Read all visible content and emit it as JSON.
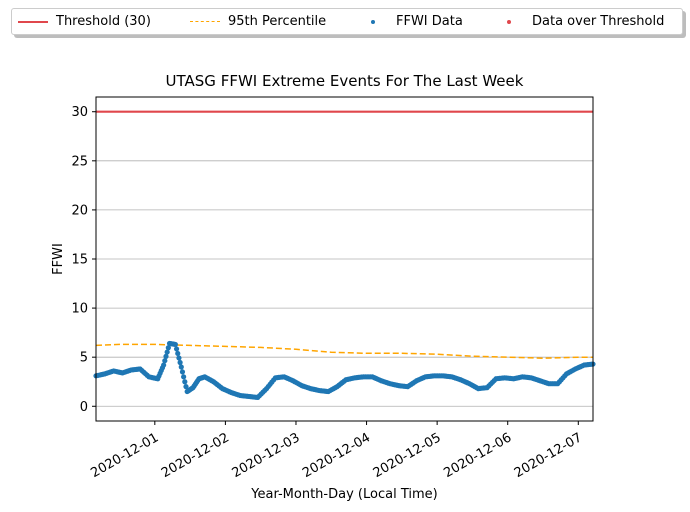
{
  "chart_data": {
    "type": "line",
    "title": "UTASG FFWI Extreme Events For The Last Week",
    "xlabel": "Year-Month-Day (Local Time)",
    "ylabel": "FFWI",
    "ylim": [
      -1.5,
      31.5
    ],
    "xlim": [
      "2020-11-30T04:00",
      "2020-12-07T05:00"
    ],
    "yticks": [
      0,
      5,
      10,
      15,
      20,
      25,
      30
    ],
    "ytick_labels": [
      "0",
      "5",
      "10",
      "15",
      "20",
      "25",
      "30"
    ],
    "xticks": [
      "2020-12-01",
      "2020-12-02",
      "2020-12-03",
      "2020-12-04",
      "2020-12-05",
      "2020-12-06",
      "2020-12-07"
    ],
    "grid": "horizontal",
    "legend_position": "top, above plot",
    "series": [
      {
        "name": "Threshold (30)",
        "kind": "line",
        "color": "#e0474c",
        "x": [
          "2020-11-30T04:00",
          "2020-12-07T05:00"
        ],
        "y": [
          30,
          30
        ]
      },
      {
        "name": "95th Percentile",
        "kind": "dashed-line",
        "color": "#ffa500",
        "x": [
          "2020-11-30T04:00",
          "2020-11-30T12:00",
          "2020-12-01T00:00",
          "2020-12-01T12:00",
          "2020-12-02T00:00",
          "2020-12-02T12:00",
          "2020-12-03T00:00",
          "2020-12-03T12:00",
          "2020-12-04T00:00",
          "2020-12-04T12:00",
          "2020-12-05T00:00",
          "2020-12-05T12:00",
          "2020-12-06T00:00",
          "2020-12-06T12:00",
          "2020-12-07T00:00",
          "2020-12-07T05:00"
        ],
        "y": [
          6.2,
          6.3,
          6.3,
          6.2,
          6.1,
          6.0,
          5.8,
          5.5,
          5.4,
          5.4,
          5.3,
          5.1,
          5.0,
          4.9,
          5.0,
          5.0
        ]
      },
      {
        "name": "FFWI Data",
        "kind": "scatter",
        "color": "#1f77b4",
        "x": [
          "2020-11-30T04:00",
          "2020-11-30T07:00",
          "2020-11-30T10:00",
          "2020-11-30T13:00",
          "2020-11-30T16:00",
          "2020-11-30T19:00",
          "2020-11-30T22:00",
          "2020-12-01T01:00",
          "2020-12-01T03:00",
          "2020-12-01T05:00",
          "2020-12-01T07:00",
          "2020-12-01T09:00",
          "2020-12-01T11:00",
          "2020-12-01T13:00",
          "2020-12-01T15:00",
          "2020-12-01T17:00",
          "2020-12-01T20:00",
          "2020-12-01T23:00",
          "2020-12-02T02:00",
          "2020-12-02T05:00",
          "2020-12-02T08:00",
          "2020-12-02T11:00",
          "2020-12-02T14:00",
          "2020-12-02T17:00",
          "2020-12-02T20:00",
          "2020-12-02T23:00",
          "2020-12-03T02:00",
          "2020-12-03T05:00",
          "2020-12-03T08:00",
          "2020-12-03T11:00",
          "2020-12-03T14:00",
          "2020-12-03T17:00",
          "2020-12-03T20:00",
          "2020-12-03T23:00",
          "2020-12-04T02:00",
          "2020-12-04T05:00",
          "2020-12-04T08:00",
          "2020-12-04T11:00",
          "2020-12-04T14:00",
          "2020-12-04T17:00",
          "2020-12-04T20:00",
          "2020-12-04T23:00",
          "2020-12-05T02:00",
          "2020-12-05T05:00",
          "2020-12-05T08:00",
          "2020-12-05T11:00",
          "2020-12-05T14:00",
          "2020-12-05T17:00",
          "2020-12-05T20:00",
          "2020-12-05T23:00",
          "2020-12-06T02:00",
          "2020-12-06T05:00",
          "2020-12-06T08:00",
          "2020-12-06T11:00",
          "2020-12-06T14:00",
          "2020-12-06T17:00",
          "2020-12-06T20:00",
          "2020-12-06T23:00",
          "2020-12-07T02:00",
          "2020-12-07T05:00"
        ],
        "y": [
          3.1,
          3.3,
          3.6,
          3.4,
          3.7,
          3.8,
          3.0,
          2.8,
          4.2,
          6.4,
          6.3,
          4.0,
          1.5,
          1.9,
          2.8,
          3.0,
          2.5,
          1.8,
          1.4,
          1.1,
          1.0,
          0.9,
          1.8,
          2.9,
          3.0,
          2.6,
          2.1,
          1.8,
          1.6,
          1.5,
          2.0,
          2.7,
          2.9,
          3.0,
          3.0,
          2.6,
          2.3,
          2.1,
          2.0,
          2.6,
          3.0,
          3.1,
          3.1,
          3.0,
          2.7,
          2.3,
          1.8,
          1.9,
          2.8,
          2.9,
          2.8,
          3.0,
          2.9,
          2.6,
          2.3,
          2.3,
          3.3,
          3.8,
          4.2,
          4.3
        ]
      },
      {
        "name": "Data over Threshold",
        "kind": "scatter",
        "color": "#e0474c",
        "x": [],
        "y": []
      }
    ]
  }
}
